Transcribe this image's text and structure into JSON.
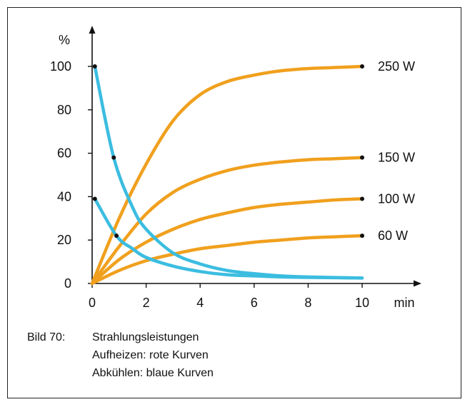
{
  "chart_data": {
    "type": "line",
    "ylabel": "%",
    "xlabel": "min",
    "xlim": [
      0,
      10
    ],
    "ylim": [
      0,
      100
    ],
    "x_ticks": [
      "0",
      "2",
      "4",
      "6",
      "8",
      "10"
    ],
    "y_ticks": [
      "0",
      "20",
      "40",
      "60",
      "80",
      "100"
    ],
    "series": [
      {
        "name": "250 W",
        "kind": "heating",
        "color": "#f0a01e",
        "x": [
          0,
          1,
          2,
          3,
          4,
          5,
          6,
          7,
          8,
          9,
          10
        ],
        "y": [
          0,
          30,
          55,
          75,
          87,
          93,
          96,
          98,
          99,
          99.5,
          100
        ]
      },
      {
        "name": "150 W",
        "kind": "heating",
        "color": "#f0a01e",
        "x": [
          0,
          1,
          2,
          3,
          4,
          5,
          6,
          7,
          8,
          9,
          10
        ],
        "y": [
          0,
          17,
          32,
          42,
          48,
          52,
          54.5,
          56,
          57,
          57.5,
          58
        ]
      },
      {
        "name": "100 W",
        "kind": "heating",
        "color": "#f0a01e",
        "x": [
          0,
          1,
          2,
          3,
          4,
          5,
          6,
          7,
          8,
          9,
          10
        ],
        "y": [
          0,
          11,
          19,
          25,
          29.5,
          32.5,
          35,
          36.5,
          37.5,
          38.5,
          39
        ]
      },
      {
        "name": "60 W",
        "kind": "heating",
        "color": "#f0a01e",
        "x": [
          0,
          1,
          2,
          3,
          4,
          5,
          6,
          7,
          8,
          9,
          10
        ],
        "y": [
          0,
          6,
          10.5,
          13.5,
          16,
          17.5,
          19,
          20,
          21,
          21.5,
          22
        ]
      },
      {
        "name": "",
        "kind": "cooling",
        "color": "#3bbde0",
        "x": [
          0.1,
          0.8,
          1.5,
          2,
          3,
          4,
          5,
          6,
          7,
          8,
          10
        ],
        "y": [
          100,
          58,
          35,
          25,
          14,
          9,
          6,
          4.5,
          3.5,
          3,
          2.5
        ]
      },
      {
        "name": "",
        "kind": "cooling",
        "color": "#3bbde0",
        "x": [
          0.1,
          0.9,
          1.5,
          2,
          3,
          4,
          5,
          6,
          7,
          8,
          10
        ],
        "y": [
          39,
          22,
          16,
          12,
          8,
          5.5,
          4,
          3.5,
          3,
          2.8,
          2.5
        ]
      }
    ]
  },
  "marker_points": [
    {
      "x": 10,
      "y": 100
    },
    {
      "x": 10,
      "y": 58
    },
    {
      "x": 10,
      "y": 39
    },
    {
      "x": 10,
      "y": 22
    },
    {
      "x": 0.1,
      "y": 100
    },
    {
      "x": 0.8,
      "y": 58
    },
    {
      "x": 0.1,
      "y": 39
    },
    {
      "x": 0.9,
      "y": 22
    }
  ],
  "caption": {
    "number": "Bild 70:",
    "title": "Strahlungsleistungen",
    "line2": "Aufheizen: rote Kurven",
    "line3": "Abkühlen: blaue Kurven"
  }
}
